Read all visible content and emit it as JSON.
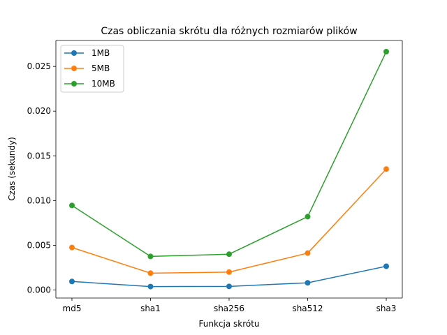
{
  "chart_data": {
    "type": "line",
    "title": "Czas obliczania skrótu dla różnych rozmiarów plików",
    "xlabel": "Funkcja skrótu",
    "ylabel": "Czas (sekundy)",
    "categories": [
      "md5",
      "sha1",
      "sha256",
      "sha512",
      "sha3"
    ],
    "ylim": [
      -0.0009,
      0.0279
    ],
    "yticks": [
      0.0,
      0.005,
      0.01,
      0.015,
      0.02,
      0.025
    ],
    "ytick_labels": [
      "0.000",
      "0.005",
      "0.010",
      "0.015",
      "0.020",
      "0.025"
    ],
    "grid": false,
    "legend_position": "upper-left",
    "series": [
      {
        "name": "1MB",
        "color": "#1f77b4",
        "values": [
          0.00095,
          0.00038,
          0.0004,
          0.0008,
          0.00265
        ]
      },
      {
        "name": "5MB",
        "color": "#ff7f0e",
        "values": [
          0.00475,
          0.00188,
          0.002,
          0.00412,
          0.01352
        ]
      },
      {
        "name": "10MB",
        "color": "#2ca02c",
        "values": [
          0.00945,
          0.00375,
          0.004,
          0.0082,
          0.02665
        ]
      }
    ]
  }
}
